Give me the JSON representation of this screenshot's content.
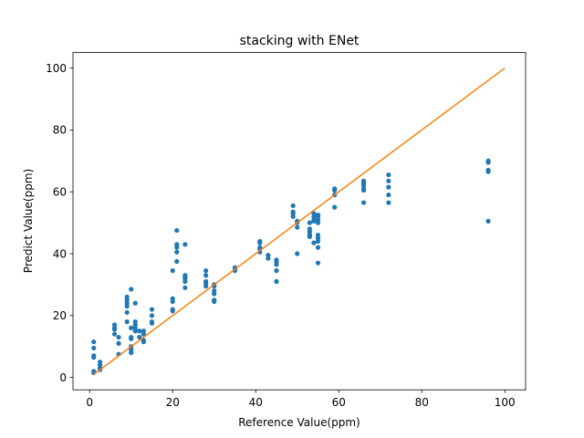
{
  "chart_data": {
    "type": "scatter",
    "title": "stacking with ENet",
    "xlabel": "Reference Value(ppm)",
    "ylabel": "Predict Value(ppm)",
    "xlim": [
      -4,
      105
    ],
    "ylim": [
      -4,
      105
    ],
    "xticks": [
      0,
      20,
      40,
      60,
      80,
      100
    ],
    "yticks": [
      0,
      20,
      40,
      60,
      80,
      100
    ],
    "grid": false,
    "series": [
      {
        "kind": "points",
        "color": "#1f77b4",
        "points": [
          [
            1,
            1.5
          ],
          [
            1,
            2
          ],
          [
            1,
            6.5
          ],
          [
            1,
            7
          ],
          [
            1,
            9.5
          ],
          [
            1,
            11.5
          ],
          [
            2.5,
            2.5
          ],
          [
            2.5,
            3
          ],
          [
            2.5,
            4
          ],
          [
            2.5,
            5
          ],
          [
            6,
            14
          ],
          [
            6,
            15.5
          ],
          [
            6,
            16
          ],
          [
            6,
            17
          ],
          [
            7,
            7.5
          ],
          [
            7,
            11
          ],
          [
            7,
            13
          ],
          [
            9,
            18
          ],
          [
            9,
            21
          ],
          [
            9,
            23
          ],
          [
            9,
            24
          ],
          [
            9,
            25
          ],
          [
            9,
            26
          ],
          [
            10,
            8
          ],
          [
            10,
            9
          ],
          [
            10,
            10
          ],
          [
            10,
            12.5
          ],
          [
            10,
            13
          ],
          [
            10,
            16
          ],
          [
            10,
            28.5
          ],
          [
            11,
            15
          ],
          [
            11,
            16
          ],
          [
            11,
            17
          ],
          [
            11,
            18
          ],
          [
            11,
            24
          ],
          [
            12,
            13
          ],
          [
            12,
            15
          ],
          [
            13,
            11.5
          ],
          [
            13,
            12
          ],
          [
            13,
            14
          ],
          [
            13,
            15
          ],
          [
            15,
            17.5
          ],
          [
            15,
            18
          ],
          [
            15,
            20
          ],
          [
            15,
            22
          ],
          [
            20,
            21.5
          ],
          [
            20,
            22
          ],
          [
            20,
            24.5
          ],
          [
            20,
            25.5
          ],
          [
            20,
            34.5
          ],
          [
            21,
            37.5
          ],
          [
            21,
            40.5
          ],
          [
            21,
            42
          ],
          [
            21,
            43
          ],
          [
            21,
            47.5
          ],
          [
            23,
            29
          ],
          [
            23,
            31
          ],
          [
            23,
            32
          ],
          [
            23,
            32.5
          ],
          [
            23,
            33
          ],
          [
            23,
            43
          ],
          [
            28,
            29.5
          ],
          [
            28,
            30.5
          ],
          [
            28,
            31
          ],
          [
            28,
            33
          ],
          [
            28,
            34.5
          ],
          [
            30,
            24.5
          ],
          [
            30,
            25
          ],
          [
            30,
            27
          ],
          [
            30,
            28
          ],
          [
            30,
            29.5
          ],
          [
            30,
            30
          ],
          [
            35,
            34.5
          ],
          [
            35,
            35
          ],
          [
            35,
            35.5
          ],
          [
            41,
            40.5
          ],
          [
            41,
            41.5
          ],
          [
            41,
            42
          ],
          [
            41,
            43.5
          ],
          [
            41,
            44
          ],
          [
            43,
            38.5
          ],
          [
            43,
            39.5
          ],
          [
            45,
            31
          ],
          [
            45,
            34.5
          ],
          [
            45,
            36.5
          ],
          [
            45,
            37.5
          ],
          [
            45,
            38
          ],
          [
            49,
            52
          ],
          [
            49,
            53
          ],
          [
            49,
            53.5
          ],
          [
            49,
            55.5
          ],
          [
            50,
            40
          ],
          [
            50,
            48.5
          ],
          [
            50,
            50
          ],
          [
            50,
            50.5
          ],
          [
            53,
            45.5
          ],
          [
            53,
            46
          ],
          [
            53,
            47
          ],
          [
            53,
            48
          ],
          [
            53,
            50
          ],
          [
            54,
            43.5
          ],
          [
            54,
            50.5
          ],
          [
            54,
            51
          ],
          [
            54,
            52
          ],
          [
            54,
            53
          ],
          [
            55,
            37
          ],
          [
            55,
            42
          ],
          [
            55,
            44
          ],
          [
            55,
            45
          ],
          [
            55,
            46
          ],
          [
            55,
            50
          ],
          [
            55,
            51
          ],
          [
            55,
            52
          ],
          [
            55,
            52.5
          ],
          [
            59,
            55
          ],
          [
            59,
            59
          ],
          [
            59,
            60.5
          ],
          [
            59,
            61
          ],
          [
            66,
            56.5
          ],
          [
            66,
            60.5
          ],
          [
            66,
            61
          ],
          [
            66,
            62
          ],
          [
            66,
            62.5
          ],
          [
            66,
            63
          ],
          [
            66,
            63.5
          ],
          [
            72,
            56.5
          ],
          [
            72,
            59
          ],
          [
            72,
            61.5
          ],
          [
            72,
            63.5
          ],
          [
            72,
            65.5
          ],
          [
            96,
            50.5
          ],
          [
            96,
            66.5
          ],
          [
            96,
            67
          ],
          [
            96,
            69.5
          ],
          [
            96,
            70
          ]
        ]
      },
      {
        "kind": "line",
        "color": "#ff7f0e",
        "points": [
          [
            1,
            1
          ],
          [
            100,
            100
          ]
        ]
      }
    ]
  }
}
